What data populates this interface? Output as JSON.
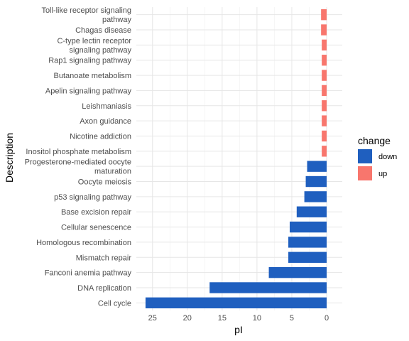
{
  "chart_data": {
    "type": "bar",
    "orientation": "horizontal",
    "x_reversed": true,
    "xlabel": "pI",
    "ylabel": "Description",
    "xlim": [
      0,
      27.5
    ],
    "xticks": [
      25,
      20,
      15,
      10,
      5,
      0
    ],
    "grid": true,
    "legend": {
      "title": "change",
      "placement": "right",
      "items": [
        {
          "label": "down",
          "color": "#1F5FBF"
        },
        {
          "label": "up",
          "color": "#F8766D"
        }
      ]
    },
    "bars": [
      {
        "label": "Cell cycle",
        "value": 26.0,
        "change": "down"
      },
      {
        "label": "DNA replication",
        "value": 16.8,
        "change": "down"
      },
      {
        "label": "Fanconi anemia pathway",
        "value": 8.3,
        "change": "down"
      },
      {
        "label": "Mismatch repair",
        "value": 5.5,
        "change": "down"
      },
      {
        "label": "Homologous recombination",
        "value": 5.5,
        "change": "down"
      },
      {
        "label": "Cellular senescence",
        "value": 5.3,
        "change": "down"
      },
      {
        "label": "Base excision repair",
        "value": 4.3,
        "change": "down"
      },
      {
        "label": "p53 signaling pathway",
        "value": 3.2,
        "change": "down"
      },
      {
        "label": "Oocyte meiosis",
        "value": 3.0,
        "change": "down"
      },
      {
        "label": [
          "Progesterone-mediated oocyte",
          "maturation"
        ],
        "value": 2.8,
        "change": "down"
      },
      {
        "label": "Inositol phosphate metabolism",
        "value": 0.7,
        "change": "up"
      },
      {
        "label": "Nicotine addiction",
        "value": 0.7,
        "change": "up"
      },
      {
        "label": "Axon guidance",
        "value": 0.7,
        "change": "up"
      },
      {
        "label": "Leishmaniasis",
        "value": 0.7,
        "change": "up"
      },
      {
        "label": "Apelin signaling pathway",
        "value": 0.7,
        "change": "up"
      },
      {
        "label": "Butanoate metabolism",
        "value": 0.7,
        "change": "up"
      },
      {
        "label": "Rap1 signaling pathway",
        "value": 0.7,
        "change": "up"
      },
      {
        "label": [
          "C-type lectin receptor",
          "signaling pathway"
        ],
        "value": 0.7,
        "change": "up"
      },
      {
        "label": "Chagas disease",
        "value": 0.8,
        "change": "up"
      },
      {
        "label": [
          "Toll-like receptor signaling",
          "pathway"
        ],
        "value": 0.8,
        "change": "up"
      }
    ]
  }
}
